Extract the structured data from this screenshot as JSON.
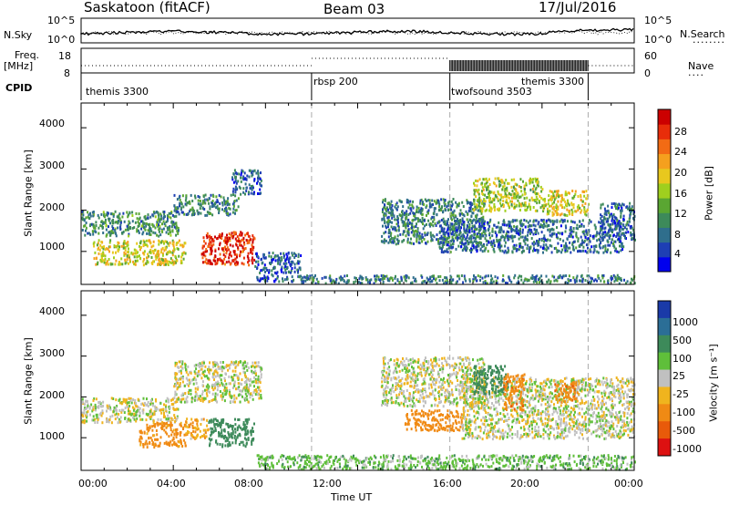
{
  "header": {
    "station": "Saskatoon (fitACF)",
    "beam": "Beam 03",
    "date": "17/Jul/2016"
  },
  "noise_panel": {
    "left_label": "N.Sky",
    "left_ticks": [
      "10^5",
      "10^0"
    ],
    "right_ticks": [
      "10^5",
      "10^0"
    ],
    "right_label": "N.Search"
  },
  "freq_panel": {
    "left_label_1": "Freq.",
    "left_label_2": "[MHz]",
    "left_ticks": [
      "18",
      "8"
    ],
    "right_ticks": [
      "60",
      "0"
    ],
    "right_label": "Nave"
  },
  "cpid": {
    "label": "CPID",
    "programs": [
      {
        "name": "themis 3300",
        "start_hour": 0
      },
      {
        "name": "rbsp 200",
        "start_hour": 10
      },
      {
        "name": "twofsound 3503",
        "start_hour": 16
      },
      {
        "name": "themis 3300",
        "start_hour": 22
      }
    ]
  },
  "x_ticks": [
    "00:00",
    "04:00",
    "08:00",
    "12:00",
    "16:00",
    "20:00",
    "00:00"
  ],
  "x_label": "Time UT",
  "power_panel": {
    "y_label": "Slant Range [km]",
    "y_ticks": [
      "1000",
      "2000",
      "3000",
      "4000"
    ],
    "colorbar_label": "Power [dB]",
    "colorbar_ticks": [
      "4",
      "8",
      "12",
      "16",
      "20",
      "24",
      "28"
    ],
    "colors": [
      "#0000ee",
      "#1e3fb4",
      "#2f6e8c",
      "#3d8a5a",
      "#5aa632",
      "#9fcf1e",
      "#e8c81e",
      "#f5a01e",
      "#f26b14",
      "#e82d0a",
      "#cc0000"
    ]
  },
  "velocity_panel": {
    "y_label": "Slant Range [km]",
    "y_ticks": [
      "1000",
      "2000",
      "3000",
      "4000"
    ],
    "colorbar_label": "Velocity [m s⁻¹]",
    "colorbar_ticks": [
      "1000",
      "500",
      "100",
      "25",
      "-25",
      "-100",
      "-500",
      "-1000"
    ],
    "colors": [
      "#1a3aa8",
      "#2b6e96",
      "#3d8a5a",
      "#5fbf3a",
      "#c0c0c0",
      "#f0b41e",
      "#f08a14",
      "#e85a0a",
      "#dd1111"
    ]
  },
  "chart_data": [
    {
      "type": "heatmap",
      "title": "",
      "xlabel": "Time UT",
      "ylabel": "Slant Range [km]",
      "xlim": [
        0,
        24
      ],
      "ylim": [
        200,
        4600
      ],
      "value_label": "Power [dB]",
      "clim": [
        0,
        32
      ],
      "regions": [
        {
          "t0": 0.0,
          "t1": 4.2,
          "r0": 1400,
          "r1": 2000,
          "value": 10
        },
        {
          "t0": 4.0,
          "t1": 6.8,
          "r0": 1900,
          "r1": 2400,
          "value": 9
        },
        {
          "t0": 6.5,
          "t1": 7.8,
          "r0": 2400,
          "r1": 3000,
          "value": 7
        },
        {
          "t0": 0.5,
          "t1": 4.5,
          "r0": 700,
          "r1": 1300,
          "value": 18
        },
        {
          "t0": 5.2,
          "t1": 7.5,
          "r0": 700,
          "r1": 1500,
          "value": 28
        },
        {
          "t0": 7.5,
          "t1": 9.5,
          "r0": 300,
          "r1": 1000,
          "value": 6
        },
        {
          "t0": 9.5,
          "t1": 24.0,
          "r0": 250,
          "r1": 450,
          "value": 8
        },
        {
          "t0": 13.0,
          "t1": 17.5,
          "r0": 1200,
          "r1": 2300,
          "value": 9
        },
        {
          "t0": 15.5,
          "t1": 23.5,
          "r0": 1000,
          "r1": 1800,
          "value": 7
        },
        {
          "t0": 17.0,
          "t1": 20.0,
          "r0": 2000,
          "r1": 2800,
          "value": 16
        },
        {
          "t0": 20.0,
          "t1": 22.0,
          "r0": 1900,
          "r1": 2500,
          "value": 18
        },
        {
          "t0": 22.5,
          "t1": 24.0,
          "r0": 1300,
          "r1": 2200,
          "value": 7
        }
      ]
    },
    {
      "type": "heatmap",
      "title": "",
      "xlabel": "Time UT",
      "ylabel": "Slant Range [km]",
      "xlim": [
        0,
        24
      ],
      "ylim": [
        200,
        4600
      ],
      "value_label": "Velocity [m s-1]",
      "clim": [
        -1000,
        1000
      ],
      "regions": [
        {
          "t0": 0.0,
          "t1": 4.2,
          "r0": 1400,
          "r1": 2000,
          "value": 0
        },
        {
          "t0": 4.0,
          "t1": 7.8,
          "r0": 1900,
          "r1": 2900,
          "value": 0
        },
        {
          "t0": 2.5,
          "t1": 4.5,
          "r0": 800,
          "r1": 1400,
          "value": -150
        },
        {
          "t0": 4.5,
          "t1": 5.5,
          "r0": 1000,
          "r1": 1500,
          "value": -80
        },
        {
          "t0": 5.5,
          "t1": 7.5,
          "r0": 800,
          "r1": 1500,
          "value": 200
        },
        {
          "t0": 7.5,
          "t1": 24.0,
          "r0": 250,
          "r1": 600,
          "value": 60
        },
        {
          "t0": 13.0,
          "t1": 17.5,
          "r0": 1800,
          "r1": 3000,
          "value": 0
        },
        {
          "t0": 14.0,
          "t1": 16.5,
          "r0": 1200,
          "r1": 1700,
          "value": -200
        },
        {
          "t0": 16.5,
          "t1": 24.0,
          "r0": 1000,
          "r1": 2500,
          "value": 0
        },
        {
          "t0": 17.0,
          "t1": 18.5,
          "r0": 2100,
          "r1": 2800,
          "value": 200
        },
        {
          "t0": 18.3,
          "t1": 19.2,
          "r0": 1700,
          "r1": 2600,
          "value": -250
        },
        {
          "t0": 20.5,
          "t1": 21.5,
          "r0": 1900,
          "r1": 2400,
          "value": -250
        }
      ]
    }
  ]
}
